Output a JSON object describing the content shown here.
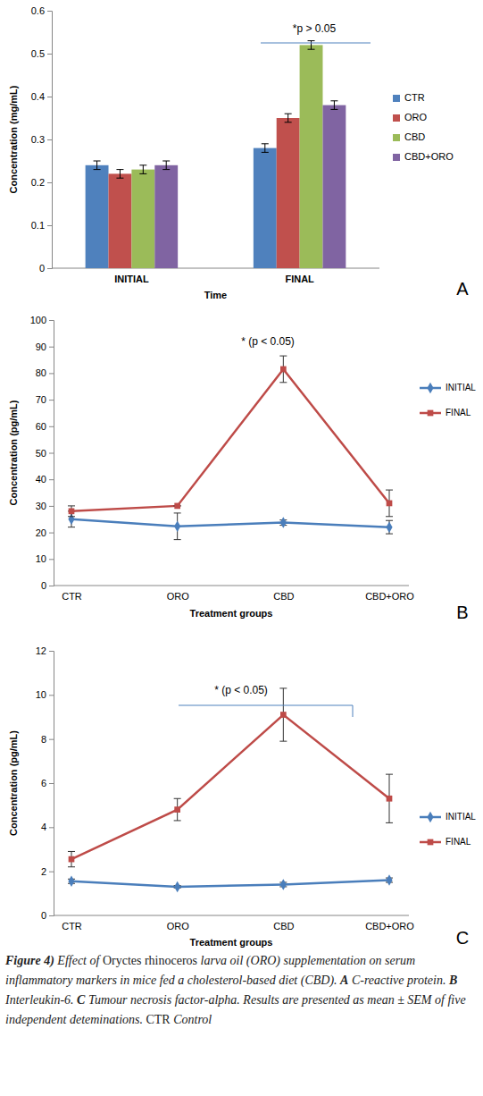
{
  "chart_data": [
    {
      "type": "bar",
      "categories": [
        "INITIAL",
        "FINAL"
      ],
      "series": [
        {
          "name": "CTR",
          "color": "#4f81bd",
          "values": [
            0.24,
            0.28
          ],
          "errors": [
            0.01,
            0.01
          ]
        },
        {
          "name": "ORO",
          "color": "#c0504d",
          "values": [
            0.22,
            0.35
          ],
          "errors": [
            0.01,
            0.01
          ]
        },
        {
          "name": "CBD",
          "color": "#9bbb59",
          "values": [
            0.23,
            0.52
          ],
          "errors": [
            0.01,
            0.01
          ]
        },
        {
          "name": "CBD+ORO",
          "color": "#8064a2",
          "values": [
            0.24,
            0.38
          ],
          "errors": [
            0.01,
            0.01
          ]
        }
      ],
      "x_label": "Time",
      "y_label": "Concentration (mg/mL)",
      "ylim": [
        0,
        0.6
      ],
      "yticks": [
        0,
        0.1,
        0.2,
        0.3,
        0.4,
        0.5,
        0.6
      ],
      "grid": false,
      "legend": "right",
      "annotations": [
        "*p > 0.05",
        "A"
      ]
    },
    {
      "type": "line",
      "categories": [
        "CTR",
        "ORO",
        "CBD",
        "CBD+ORO"
      ],
      "series": [
        {
          "name": "INITIAL",
          "color": "#4a7ebb",
          "marker": "diamond",
          "line_style": "solid",
          "values": [
            25,
            22.3,
            23.7,
            22
          ],
          "errors": [
            3,
            5,
            1,
            2.5
          ]
        },
        {
          "name": "FINAL",
          "color": "#be4b48",
          "marker": "square",
          "line_style": "solid",
          "values": [
            28,
            30,
            81.5,
            31
          ],
          "errors": [
            2,
            0,
            5,
            5
          ]
        }
      ],
      "x_label": "Treatment groups",
      "y_label": "Concentration (pg/mL)",
      "ylim": [
        0,
        100
      ],
      "yticks": [
        0,
        10,
        20,
        30,
        40,
        50,
        60,
        70,
        80,
        90,
        100
      ],
      "grid": false,
      "legend": "right",
      "annotations": [
        "* (p < 0.05)",
        "B"
      ]
    },
    {
      "type": "line",
      "categories": [
        "CTR",
        "ORO",
        "CBD",
        "CBD+ORO"
      ],
      "series": [
        {
          "name": "INITIAL",
          "color": "#4a7ebb",
          "marker": "diamond",
          "line_style": "solid",
          "values": [
            1.55,
            1.3,
            1.4,
            1.6
          ],
          "errors": [
            0.1,
            0.05,
            0.1,
            0.1
          ]
        },
        {
          "name": "FINAL",
          "color": "#be4b48",
          "marker": "square",
          "line_style": "solid",
          "values": [
            2.55,
            4.8,
            9.1,
            5.3
          ],
          "errors": [
            0.35,
            0.5,
            1.2,
            1.1
          ]
        }
      ],
      "x_label": "Treatment groups",
      "y_label": "Concentration (pg/mL)",
      "ylim": [
        0,
        12
      ],
      "yticks": [
        0,
        2,
        4,
        6,
        8,
        10,
        12
      ],
      "grid": false,
      "legend": "right",
      "annotations": [
        "* (p < 0.05)",
        "C"
      ]
    }
  ],
  "caption": [
    {
      "text": "Figure 4)",
      "style": "bold"
    },
    {
      "text": " Effect of ",
      "style": "italic"
    },
    {
      "text": "Oryctes rhinoceros",
      "style": "normal"
    },
    {
      "text": " larva oil  (ORO) supplementation on serum inflammatory markers in mice fed a cholesterol-based diet (CBD). ",
      "style": "italic"
    },
    {
      "text": "A",
      "style": "bold"
    },
    {
      "text": " C-reactive protein. ",
      "style": "italic"
    },
    {
      "text": "B",
      "style": "bold"
    },
    {
      "text": " Interleukin-6. ",
      "style": "italic"
    },
    {
      "text": "C",
      "style": "bold"
    },
    {
      "text": " Tumour necrosis factor-alpha. Results are presented as mean ± SEM of five independent deteminations. ",
      "style": "italic"
    },
    {
      "text": "CTR",
      "style": "normal"
    },
    {
      "text": " Control",
      "style": "italic"
    }
  ]
}
